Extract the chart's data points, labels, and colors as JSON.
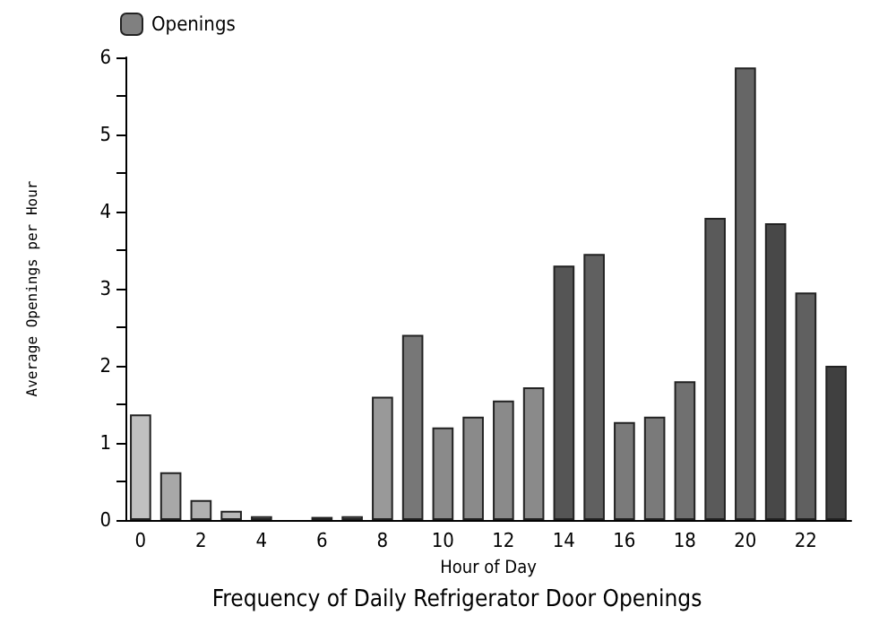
{
  "chart_data": {
    "type": "bar",
    "title": "Frequency of Daily Refrigerator Door Openings",
    "xlabel": "Hour of Day",
    "ylabel": "Average Openings per Hour",
    "categories": [
      "0",
      null,
      "2",
      null,
      "4",
      null,
      "6",
      null,
      "8",
      null,
      "10",
      null,
      "12",
      null,
      "14",
      null,
      "16",
      null,
      "18",
      null,
      "20",
      null,
      "22",
      null
    ],
    "series": [
      {
        "name": "Openings",
        "color": "#808080",
        "values": [
          1.37,
          0.62,
          0.26,
          0.12,
          0.05,
          0,
          0.04,
          0.05,
          1.6,
          2.4,
          1.2,
          1.34,
          1.55,
          1.72,
          3.3,
          3.45,
          1.27,
          1.34,
          1.8,
          3.92,
          5.87,
          3.85,
          2.95,
          2.0
        ],
        "colors": [
          "#c0c0c0",
          "#a8a8a8",
          "#b0b0b0",
          "#b8b8b8",
          "#b8b8b8",
          "#b8b8b8",
          "#b8b8b8",
          "#b8b8b8",
          "#999999",
          "#777777",
          "#8a8a8a",
          "#8a8a8a",
          "#8a8a8a",
          "#8a8a8a",
          "#555555",
          "#606060",
          "#7a7a7a",
          "#7a7a7a",
          "#707070",
          "#5a5a5a",
          "#666666",
          "#484848",
          "#606060",
          "#404040"
        ]
      }
    ],
    "ylim": [
      0,
      6
    ],
    "yticks": [
      0,
      {
        "value": 0.5,
        "label": null
      },
      1,
      {
        "value": 1.5,
        "label": null
      },
      2,
      {
        "value": 2.5,
        "label": null
      },
      3,
      {
        "value": 3.5,
        "label": null
      },
      4,
      {
        "value": 4.5,
        "label": null
      },
      5,
      {
        "value": 5.5,
        "label": null
      },
      6
    ],
    "grid": false,
    "legend": "top left"
  }
}
